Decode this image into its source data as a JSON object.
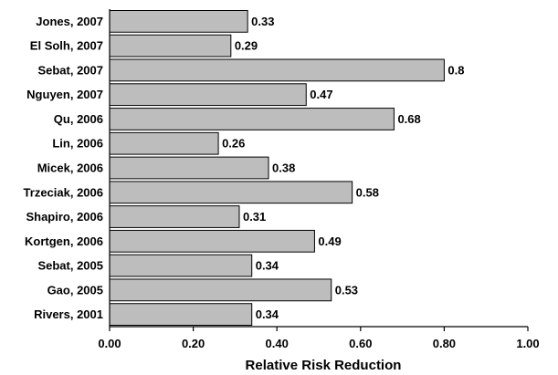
{
  "chart_data": {
    "type": "bar",
    "orientation": "horizontal",
    "categories": [
      "Jones, 2007",
      "El Solh, 2007",
      "Sebat, 2007",
      "Nguyen, 2007",
      "Qu, 2006",
      "Lin, 2006",
      "Micek, 2006",
      "Trzeciak, 2006",
      "Shapiro, 2006",
      "Kortgen, 2006",
      "Sebat, 2005",
      "Gao, 2005",
      "Rivers, 2001"
    ],
    "values": [
      0.33,
      0.29,
      0.8,
      0.47,
      0.68,
      0.26,
      0.38,
      0.58,
      0.31,
      0.49,
      0.34,
      0.53,
      0.34
    ],
    "value_labels": [
      "0.33",
      "0.29",
      "0.8",
      "0.47",
      "0.68",
      "0.26",
      "0.38",
      "0.58",
      "0.31",
      "0.49",
      "0.34",
      "0.53",
      "0.34"
    ],
    "xticks": [
      "0.00",
      "0.20",
      "0.40",
      "0.60",
      "0.80",
      "1.00"
    ],
    "xlabel": "Relative Risk Reduction",
    "ylabel": "",
    "title": "",
    "xlim": [
      0,
      1
    ],
    "grid": false,
    "bar_color": "#bdbdbd"
  }
}
